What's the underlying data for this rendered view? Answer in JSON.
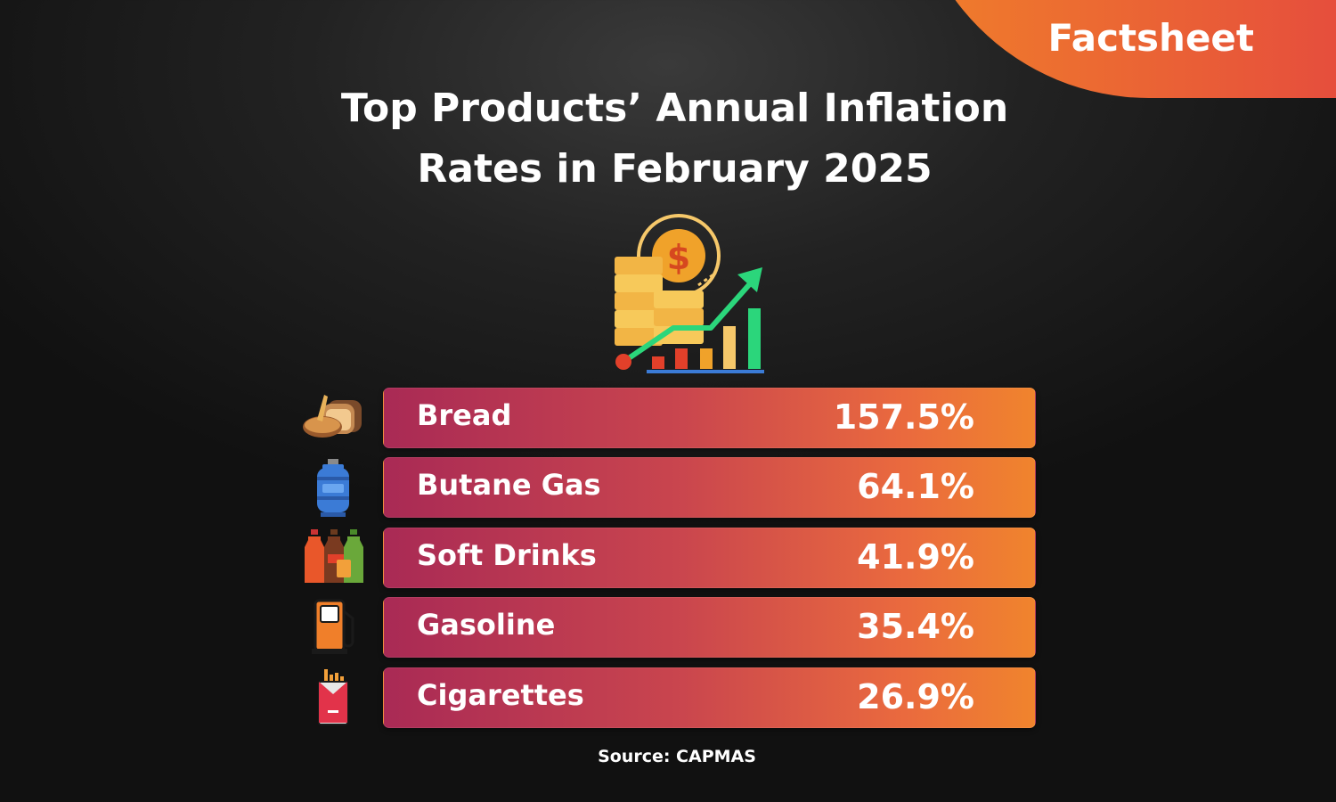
{
  "badge": {
    "label": "Factsheet"
  },
  "title_lines": [
    "Top Products’ Annual Inflation",
    "Rates in February 2025"
  ],
  "source": "Source: CAPMAS",
  "colors": {
    "badge_start": "#f07f2a",
    "badge_end": "#e54a3e",
    "bar_start": "#a92a55",
    "bar_end": "#f0842d"
  },
  "chart_data": {
    "type": "table",
    "title": "Top Products’ Annual Inflation Rates in February 2025",
    "categories": [
      "Bread",
      "Butane Gas",
      "Soft Drinks",
      "Gasoline",
      "Cigarettes"
    ],
    "values": [
      157.5,
      64.1,
      41.9,
      35.4,
      26.9
    ],
    "value_labels": [
      "157.5%",
      "64.1%",
      "41.9%",
      "35.4%",
      "26.9%"
    ],
    "icons": [
      "bread-icon",
      "gas-cylinder-icon",
      "soft-drinks-icon",
      "fuel-pump-icon",
      "cigarettes-icon"
    ],
    "unit": "%"
  }
}
